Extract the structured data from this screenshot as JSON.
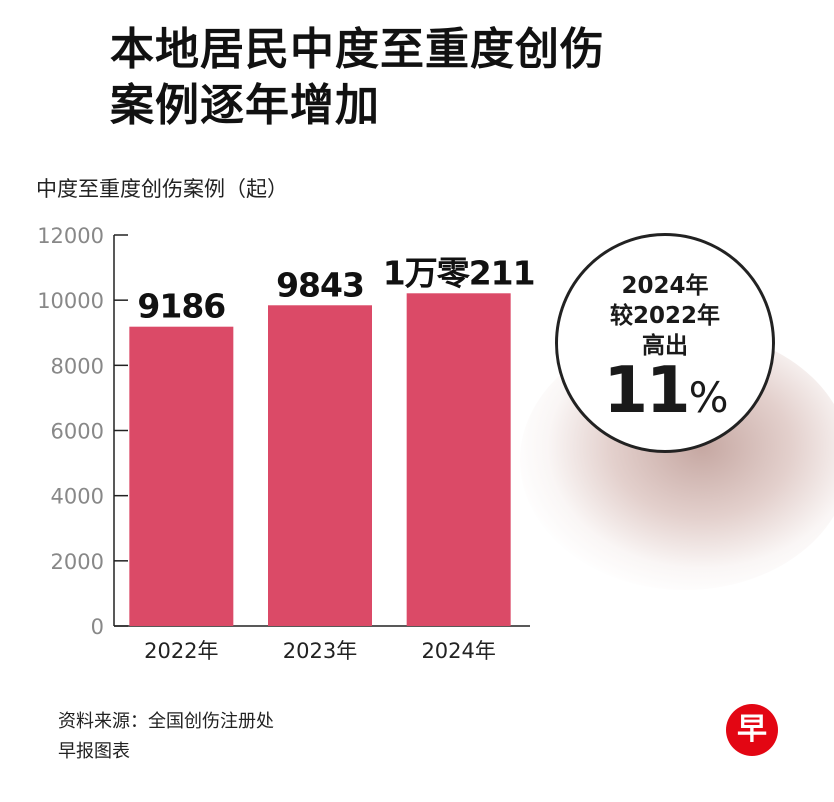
{
  "header": {
    "title_line1": "本地居民中度至重度创伤",
    "title_line2": "案例逐年增加"
  },
  "callout": {
    "line1": "2024年",
    "line2": "较2022年",
    "line3": "高出",
    "percent_value": "11",
    "percent_sign": "%"
  },
  "footer": {
    "source": "资料来源：全国创伤注册处",
    "credit": "早报图表",
    "logo_char": "早"
  },
  "colors": {
    "bar": "#db4a67",
    "axis": "#222222",
    "tick_text": "#888888"
  },
  "chart_data": {
    "type": "bar",
    "title": "本地居民中度至重度创伤案例逐年增加",
    "ylabel": "中度至重度创伤案例（起）",
    "xlabel": "",
    "categories": [
      "2022年",
      "2023年",
      "2024年"
    ],
    "values": [
      9186,
      9843,
      10211
    ],
    "data_labels": [
      "9186",
      "9843",
      "1万零211"
    ],
    "ylim": [
      0,
      12000
    ],
    "yticks": [
      0,
      2000,
      4000,
      6000,
      8000,
      10000,
      12000
    ],
    "grid": false,
    "legend": "none"
  }
}
